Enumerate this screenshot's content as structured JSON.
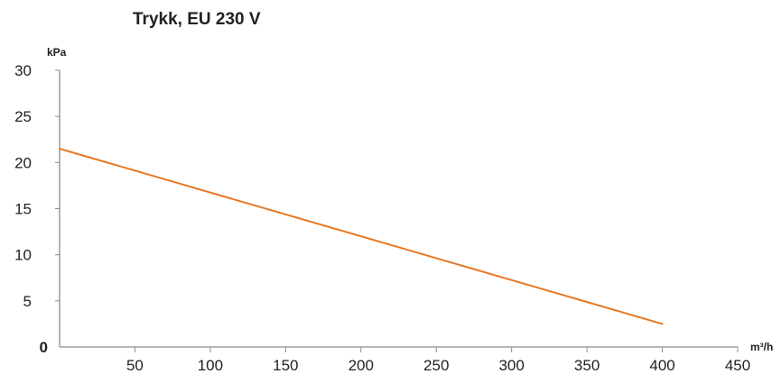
{
  "chart_data": {
    "type": "line",
    "title": "Trykk, EU 230 V",
    "ylabel": "kPa",
    "xlabel": "m³/h",
    "xlim": [
      0,
      450
    ],
    "ylim": [
      0,
      30
    ],
    "x_ticks": [
      50,
      100,
      150,
      200,
      250,
      300,
      350,
      400,
      450
    ],
    "y_ticks": [
      5,
      10,
      15,
      20,
      25,
      30
    ],
    "origin_label": "0",
    "grid": false,
    "series": [
      {
        "color": "#e87722",
        "x": [
          0,
          400
        ],
        "y": [
          21.5,
          2.5
        ]
      }
    ]
  }
}
